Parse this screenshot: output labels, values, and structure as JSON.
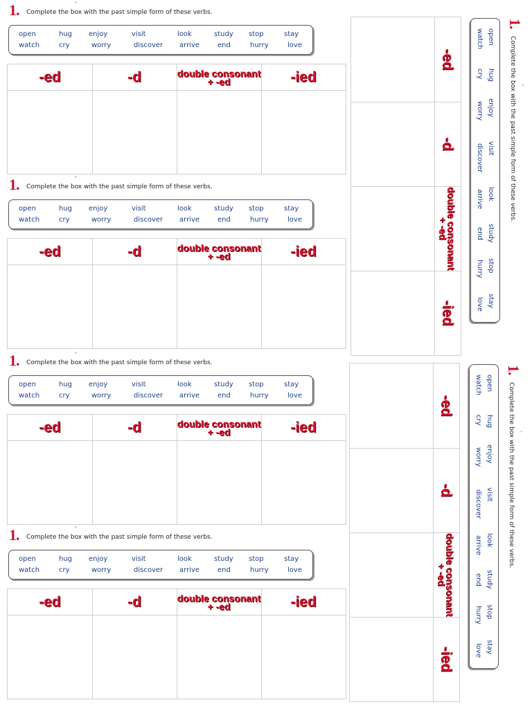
{
  "worksheet": {
    "number": "1.",
    "instruction": "Complete the box with the past simple form of these verbs.",
    "verbs_row1": [
      "open",
      "hug",
      "enjoy",
      "visit",
      "look",
      "study",
      "stop",
      "stay"
    ],
    "verbs_row2": [
      "watch",
      "cry",
      "worry",
      "discover",
      "arrive",
      "end",
      "hurry",
      "love"
    ],
    "columns": [
      "-ed",
      "-d",
      "double consonant",
      "+ -ed",
      "-ied"
    ]
  },
  "colors": {
    "accent": "#c8102e",
    "verb_text": "#1e3f8a",
    "grid_line": "#cfcfcf"
  }
}
